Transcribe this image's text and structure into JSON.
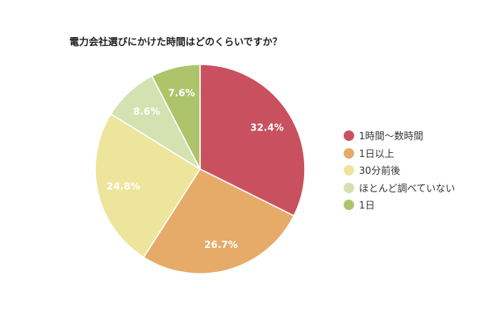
{
  "chart_data": {
    "type": "pie",
    "title": "電力会社選びにかけた時間はどのくらいですか？",
    "legend_position": "right",
    "start_angle": "top, clockwise",
    "slices": [
      {
        "label": "1時間～数時間",
        "value": 32.4,
        "display": "32.4%",
        "color": "#c9505e"
      },
      {
        "label": "1日以上",
        "value": 26.7,
        "display": "26.7%",
        "color": "#e6ab69"
      },
      {
        "label": "30分前後",
        "value": 24.8,
        "display": "24.8%",
        "color": "#ede59c"
      },
      {
        "label": "ほとんど調べていない",
        "value": 8.6,
        "display": "8.6%",
        "color": "#d4e2b1"
      },
      {
        "label": "1日",
        "value": 7.6,
        "display": "7.6%",
        "color": "#adc46a"
      }
    ]
  }
}
